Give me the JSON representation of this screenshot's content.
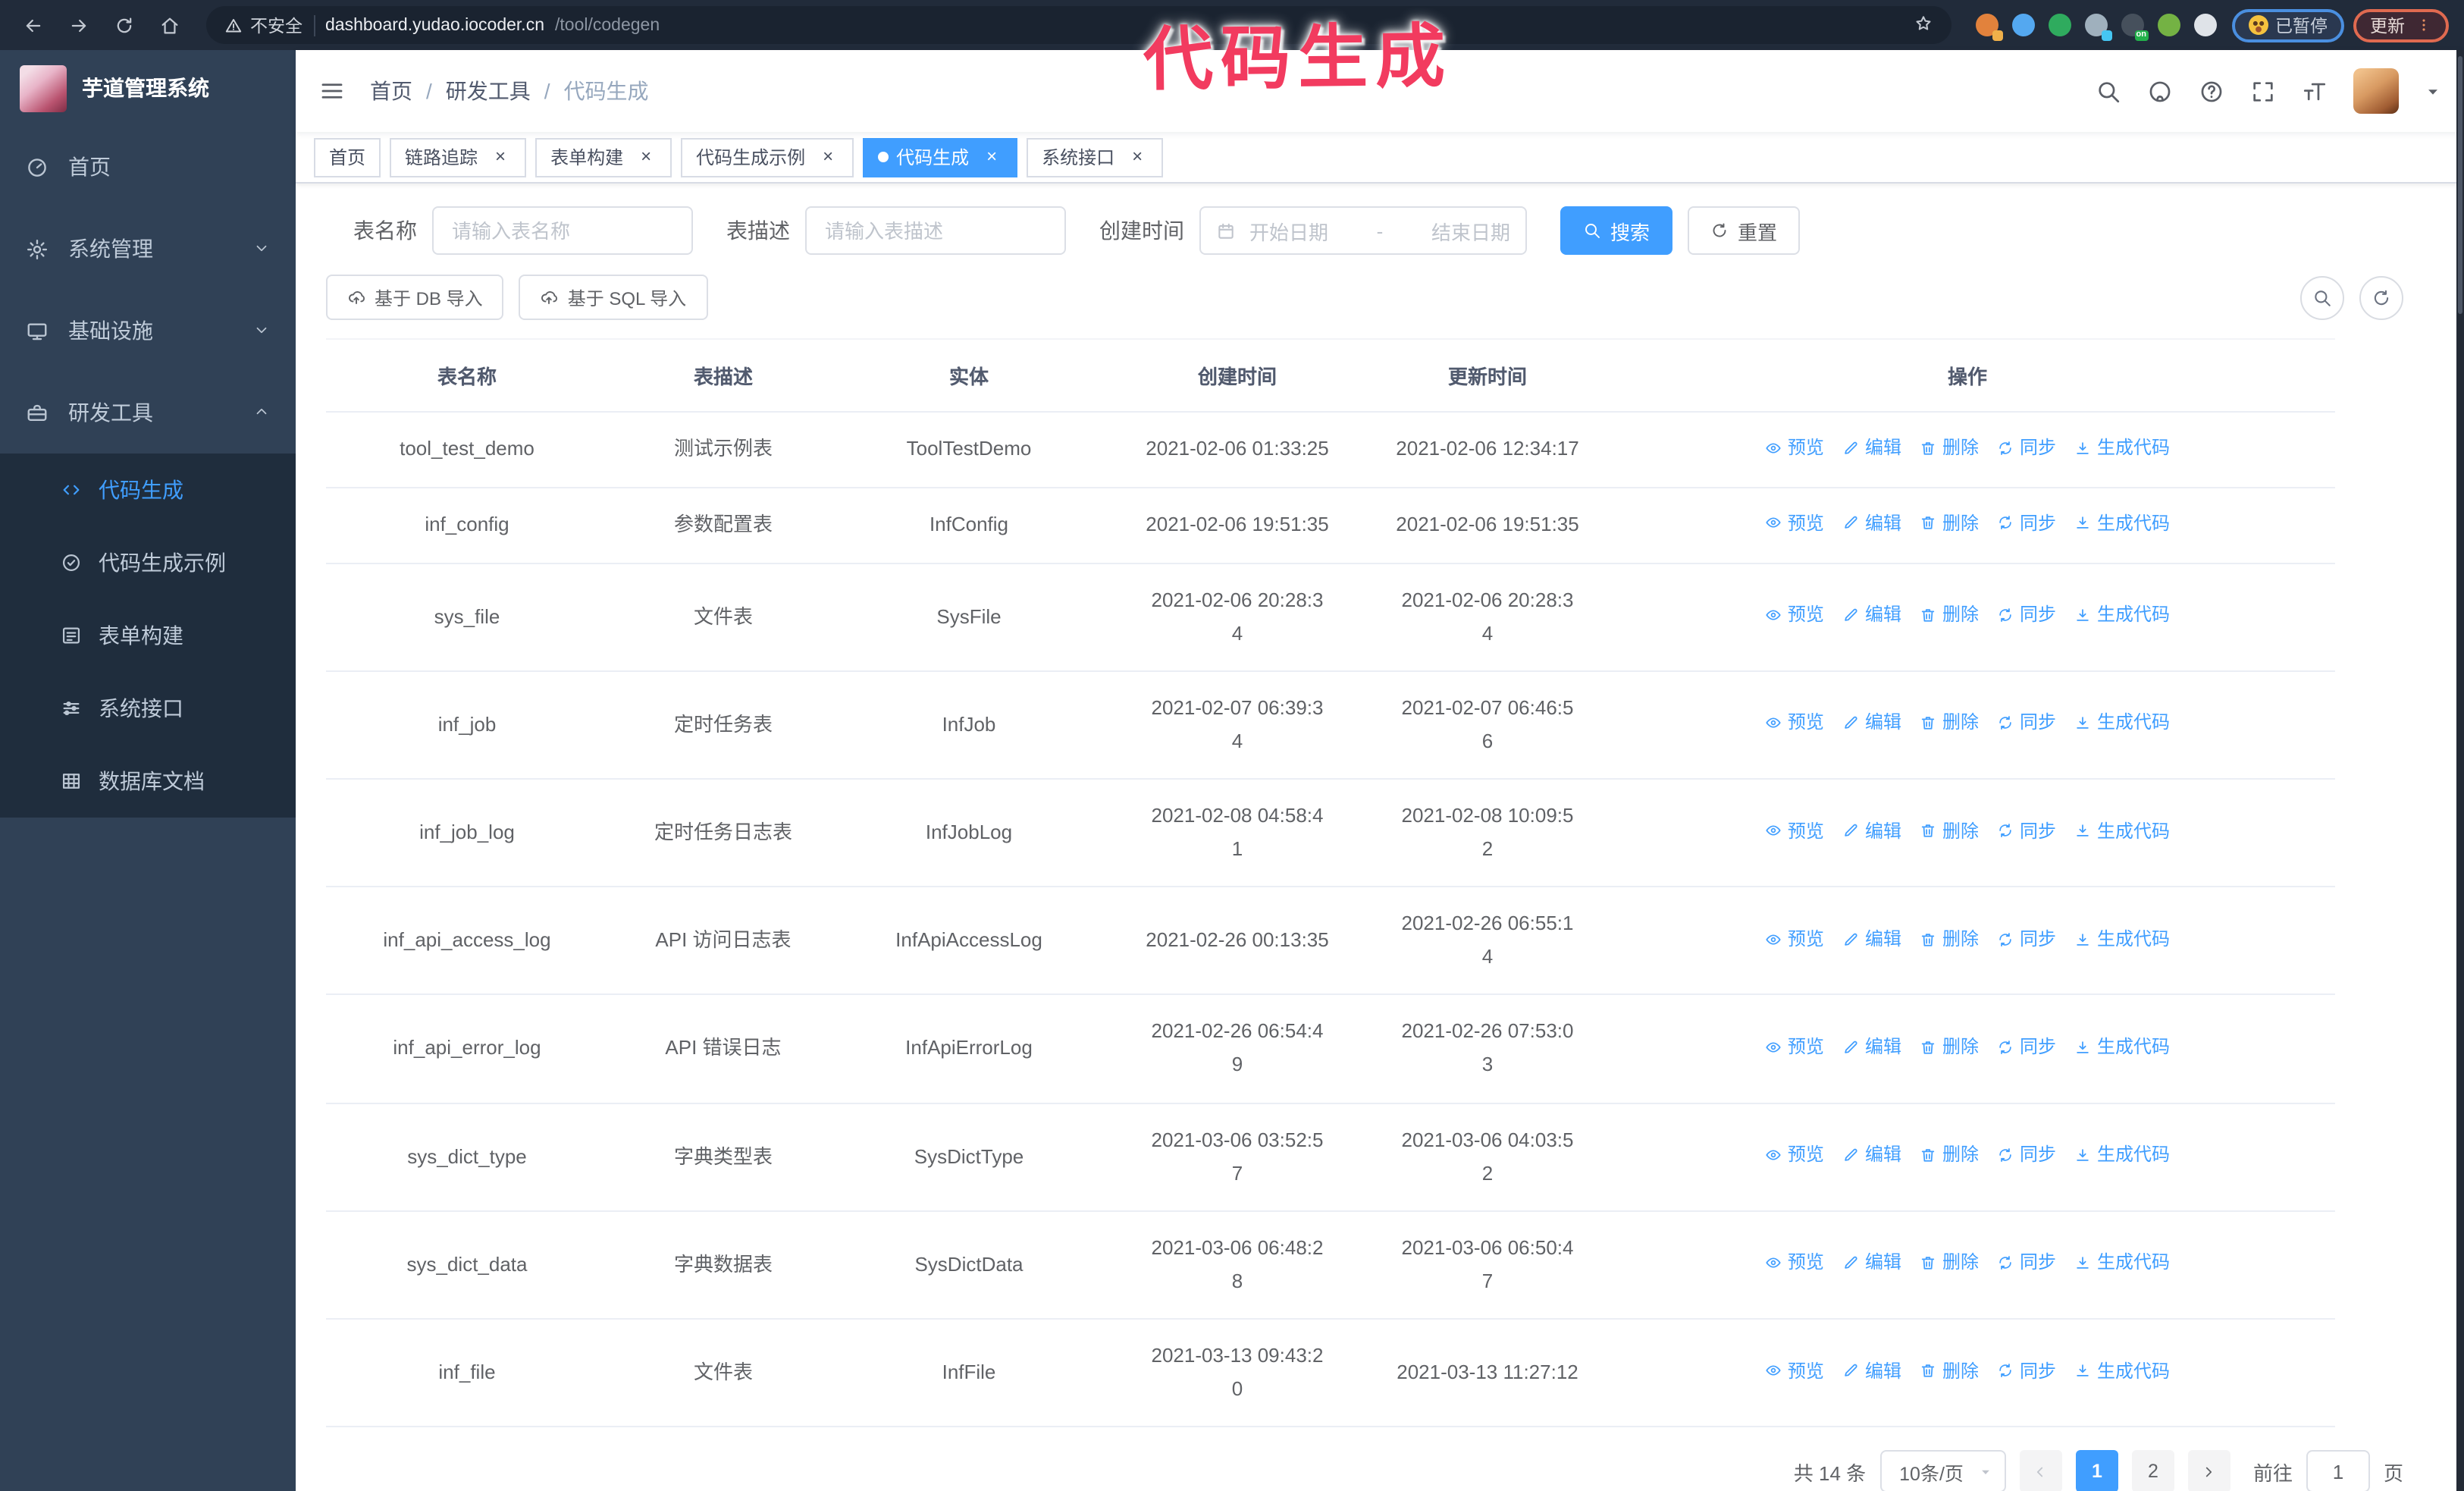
{
  "annotation": {
    "text": "代码生成",
    "color": "#f23b5f"
  },
  "glyphs": {
    "close": "×",
    "slash": "/",
    "dash": "-",
    "pipe": "|"
  },
  "browser": {
    "security": "不安全",
    "url_host": "dashboard.yudao.iocoder.cn",
    "url_path": "/tool/codegen",
    "paused_label": "已暂停",
    "update_label": "更新",
    "extensions": [
      {
        "name": "ext-orange-swirl",
        "color": "#e2823c",
        "badge": "#efb04a",
        "badge_text": ""
      },
      {
        "name": "ext-blue-gem",
        "color": "#54a8f0",
        "badge": "",
        "badge_text": ""
      },
      {
        "name": "ext-green-check",
        "color": "#2fab5e",
        "badge": "",
        "badge_text": ""
      },
      {
        "name": "ext-gray-grid",
        "color": "#9fb0bd",
        "badge": "#45c6f2",
        "badge_text": ""
      },
      {
        "name": "ext-screen-on",
        "color": "#46505c",
        "badge": "#23b14b",
        "badge_text": "on"
      },
      {
        "name": "ext-green-mascot",
        "color": "#74b244",
        "badge": "",
        "badge_text": ""
      },
      {
        "name": "ext-white-puzzle",
        "color": "#dfe3e8",
        "badge": "",
        "badge_text": ""
      }
    ]
  },
  "sidebar": {
    "title": "芋道管理系统",
    "items": [
      {
        "label": "首页",
        "icon": "dashboard",
        "state": "none"
      },
      {
        "label": "系统管理",
        "icon": "gear",
        "state": "collapsed"
      },
      {
        "label": "基础设施",
        "icon": "monitor",
        "state": "collapsed"
      },
      {
        "label": "研发工具",
        "icon": "toolbox",
        "state": "expanded"
      }
    ],
    "sub_items": [
      {
        "label": "代码生成",
        "icon": "code",
        "active": true
      },
      {
        "label": "代码生成示例",
        "icon": "badge",
        "active": false
      },
      {
        "label": "表单构建",
        "icon": "form",
        "active": false
      },
      {
        "label": "系统接口",
        "icon": "sliders",
        "active": false
      },
      {
        "label": "数据库文档",
        "icon": "grid",
        "active": false
      }
    ]
  },
  "header": {
    "breadcrumb": [
      "首页",
      "研发工具",
      "代码生成"
    ]
  },
  "tabs": [
    {
      "label": "首页",
      "closable": false,
      "active": false
    },
    {
      "label": "链路追踪",
      "closable": true,
      "active": false
    },
    {
      "label": "表单构建",
      "closable": true,
      "active": false
    },
    {
      "label": "代码生成示例",
      "closable": true,
      "active": false
    },
    {
      "label": "代码生成",
      "closable": true,
      "active": true
    },
    {
      "label": "系统接口",
      "closable": true,
      "active": false
    }
  ],
  "filters": {
    "name_label": "表名称",
    "name_placeholder": "请输入表名称",
    "desc_label": "表描述",
    "desc_placeholder": "请输入表描述",
    "date_label": "创建时间",
    "date_start": "开始日期",
    "date_end": "结束日期",
    "search": "搜索",
    "reset": "重置"
  },
  "toolbar": {
    "import_db": "基于 DB 导入",
    "import_sql": "基于 SQL 导入"
  },
  "table": {
    "headers": [
      "表名称",
      "表描述",
      "实体",
      "创建时间",
      "更新时间",
      "操作"
    ],
    "actions": [
      {
        "label": "预览",
        "icon": "eye",
        "key": "preview"
      },
      {
        "label": "编辑",
        "icon": "edit",
        "key": "edit"
      },
      {
        "label": "删除",
        "icon": "trash",
        "key": "delete"
      },
      {
        "label": "同步",
        "icon": "sync",
        "key": "sync"
      },
      {
        "label": "生成代码",
        "icon": "download",
        "key": "generate"
      }
    ],
    "rows": [
      {
        "name": "tool_test_demo",
        "desc": "测试示例表",
        "entity": "ToolTestDemo",
        "created": "2021-02-06 01:33:25",
        "updated": "2021-02-06 12:34:17"
      },
      {
        "name": "inf_config",
        "desc": "参数配置表",
        "entity": "InfConfig",
        "created": "2021-02-06 19:51:35",
        "updated": "2021-02-06 19:51:35"
      },
      {
        "name": "sys_file",
        "desc": "文件表",
        "entity": "SysFile",
        "created": "2021-02-06 20:28:3\n4",
        "updated": "2021-02-06 20:28:3\n4"
      },
      {
        "name": "inf_job",
        "desc": "定时任务表",
        "entity": "InfJob",
        "created": "2021-02-07 06:39:3\n4",
        "updated": "2021-02-07 06:46:5\n6"
      },
      {
        "name": "inf_job_log",
        "desc": "定时任务日志表",
        "entity": "InfJobLog",
        "created": "2021-02-08 04:58:4\n1",
        "updated": "2021-02-08 10:09:5\n2"
      },
      {
        "name": "inf_api_access_log",
        "desc": "API 访问日志表",
        "entity": "InfApiAccessLog",
        "created": "2021-02-26 00:13:35",
        "updated": "2021-02-26 06:55:1\n4"
      },
      {
        "name": "inf_api_error_log",
        "desc": "API 错误日志",
        "entity": "InfApiErrorLog",
        "created": "2021-02-26 06:54:4\n9",
        "updated": "2021-02-26 07:53:0\n3"
      },
      {
        "name": "sys_dict_type",
        "desc": "字典类型表",
        "entity": "SysDictType",
        "created": "2021-03-06 03:52:5\n7",
        "updated": "2021-03-06 04:03:5\n2"
      },
      {
        "name": "sys_dict_data",
        "desc": "字典数据表",
        "entity": "SysDictData",
        "created": "2021-03-06 06:48:2\n8",
        "updated": "2021-03-06 06:50:4\n7"
      },
      {
        "name": "inf_file",
        "desc": "文件表",
        "entity": "InfFile",
        "created": "2021-03-13 09:43:2\n0",
        "updated": "2021-03-13 11:27:12"
      }
    ]
  },
  "pagination": {
    "total": "共 14 条",
    "page_size": "10条/页",
    "pages": [
      "1",
      "2"
    ],
    "active_page": "1",
    "goto_label": "前往",
    "goto_value": "1",
    "goto_suffix": "页"
  },
  "colors": {
    "accent": "#409eff",
    "sidebar_bg": "#304156",
    "submenu_bg": "#1f2d3d"
  }
}
